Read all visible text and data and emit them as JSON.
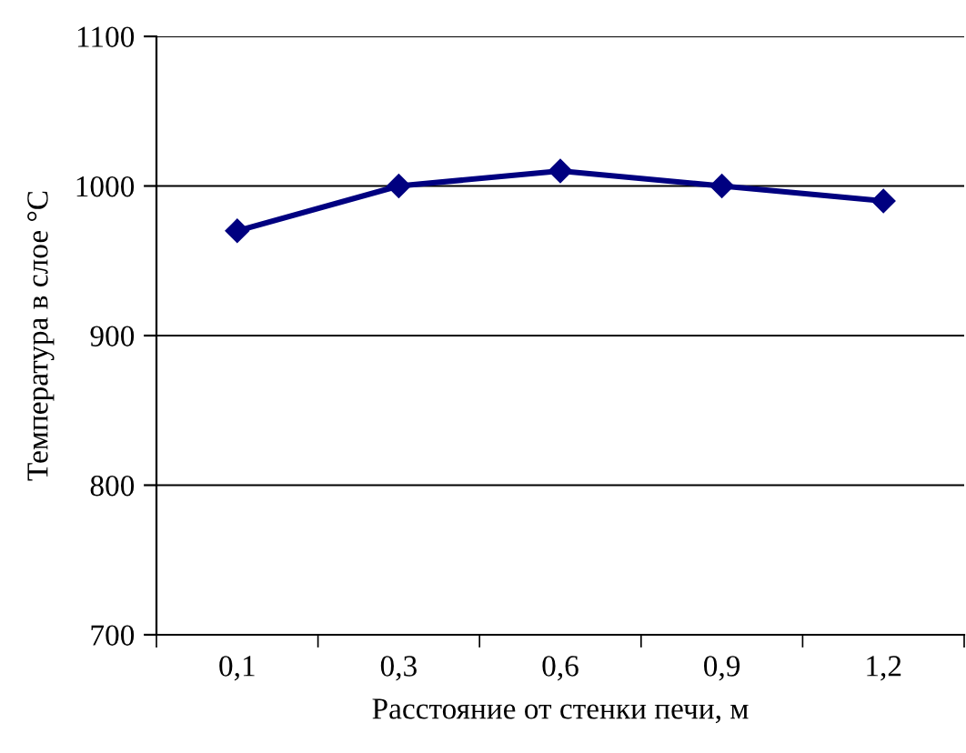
{
  "chart_data": {
    "type": "line",
    "xlabel": "Расстояние от стенки печи, м",
    "ylabel": "Температура в слое °C",
    "categories": [
      "0,1",
      "0,3",
      "0,6",
      "0,9",
      "1,2"
    ],
    "series": [
      {
        "color": "#000080",
        "values": [
          970,
          1000,
          1010,
          1000,
          990
        ]
      }
    ],
    "ylim": [
      700,
      1100
    ],
    "yticks": [
      700,
      800,
      900,
      1000,
      1100
    ],
    "grid": "y",
    "marker": "diamond",
    "line_style": "solid",
    "legend": false
  }
}
